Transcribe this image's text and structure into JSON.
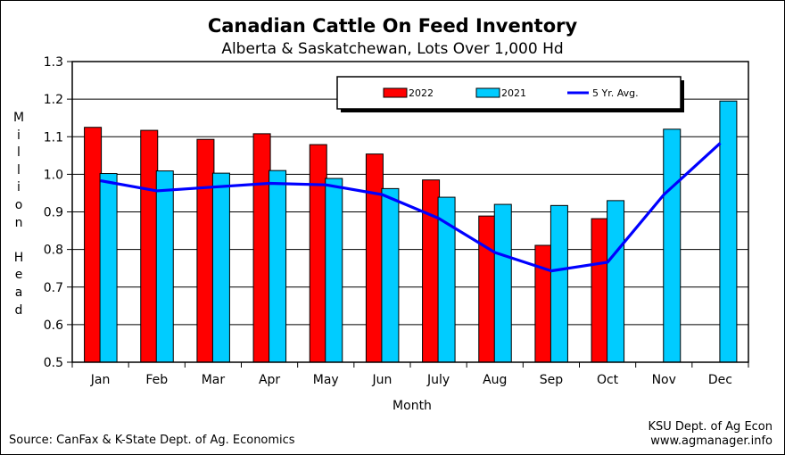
{
  "chart_data": {
    "type": "bar",
    "title": "Canadian Cattle On Feed Inventory",
    "subtitle": "Alberta & Saskatchewan, Lots Over 1,000 Hd",
    "xlabel": "Month",
    "ylabel": "Million Head",
    "ylim": [
      0.5,
      1.3
    ],
    "yticks": [
      "0.5",
      "0.6",
      "0.7",
      "0.8",
      "0.9",
      "1.0",
      "1.1",
      "1.2",
      "1.3"
    ],
    "grid": "horizontal",
    "legend_position": "top-right",
    "categories": [
      "Jan",
      "Feb",
      "Mar",
      "Apr",
      "May",
      "Jun",
      "July",
      "Aug",
      "Sep",
      "Oct",
      "Nov",
      "Dec"
    ],
    "series": [
      {
        "name": "2022",
        "type": "bar",
        "color": "#ff0000",
        "values": [
          1.125,
          1.117,
          1.093,
          1.108,
          1.079,
          1.054,
          0.985,
          0.889,
          0.811,
          0.882,
          null,
          null
        ]
      },
      {
        "name": "2021",
        "type": "bar",
        "color": "#00ccff",
        "values": [
          1.002,
          1.009,
          1.003,
          1.01,
          0.989,
          0.962,
          0.939,
          0.92,
          0.917,
          0.93,
          1.12,
          1.195
        ]
      },
      {
        "name": "5 Yr. Avg.",
        "type": "line",
        "color": "#0000ff",
        "values": [
          0.983,
          0.956,
          0.966,
          0.976,
          0.972,
          0.946,
          0.883,
          0.792,
          0.743,
          0.766,
          0.946,
          1.083
        ]
      }
    ],
    "source": "Source: CanFax & K-State Dept. of Ag. Economics",
    "credit_line1": "KSU Dept. of Ag Econ",
    "credit_line2": "www.agmanager.info"
  }
}
